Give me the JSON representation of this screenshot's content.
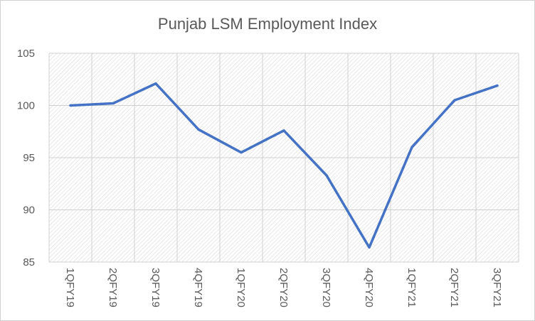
{
  "chart_data": {
    "type": "line",
    "title": "Punjab LSM Employment Index",
    "categories": [
      "1QFY19",
      "2QFY19",
      "3QFY19",
      "4QFY19",
      "1QFY20",
      "2QFY20",
      "3QFY20",
      "4QFY20",
      "1QFY21",
      "2QFY21",
      "3QFY21"
    ],
    "series": [
      {
        "values": [
          100.0,
          100.2,
          102.1,
          97.7,
          95.5,
          97.6,
          93.3,
          86.4,
          96.0,
          100.5,
          101.9
        ]
      }
    ],
    "yticks": [
      85,
      90,
      95,
      100,
      105
    ],
    "ylim": [
      85,
      105
    ],
    "grid": true,
    "line_color": "#4472c4",
    "hatch_color": "#d9d9d9"
  }
}
